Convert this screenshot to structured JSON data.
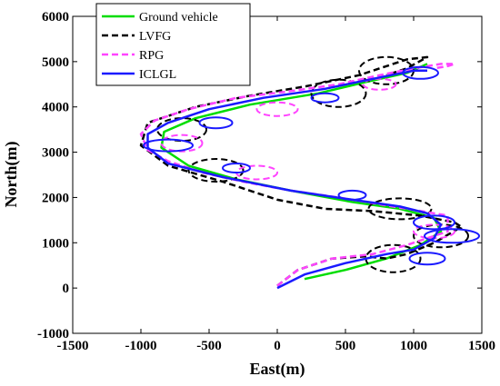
{
  "chart_data": {
    "type": "line",
    "title": "",
    "xlabel": "East(m)",
    "ylabel": "North(m)",
    "xlim": [
      -1500,
      1500
    ],
    "ylim": [
      -1000,
      6000
    ],
    "xticks": [
      -1500,
      -1000,
      -500,
      0,
      500,
      1000,
      1500
    ],
    "yticks": [
      -1000,
      0,
      1000,
      2000,
      3000,
      4000,
      5000,
      6000
    ],
    "grid": false,
    "legend_position": "top-left",
    "series": [
      {
        "name": "Ground vehicle",
        "color": "#00dd00",
        "style": "solid",
        "x": [
          200,
          500,
          800,
          1050,
          1200,
          1150,
          900,
          550,
          100,
          -300,
          -650,
          -850,
          -830,
          -600,
          -200,
          300,
          650,
          950,
          1100
        ],
        "y": [
          200,
          400,
          650,
          950,
          1250,
          1550,
          1750,
          1900,
          2150,
          2400,
          2700,
          3100,
          3450,
          3750,
          4050,
          4300,
          4550,
          4750,
          4950
        ]
      },
      {
        "name": "LVFG",
        "color": "#000000",
        "style": "dashed",
        "x": [
          0,
          150,
          400,
          650,
          800,
          950,
          1150,
          1350,
          1300,
          1050,
          700,
          350,
          0,
          -400,
          -800,
          -1000,
          -950,
          -600,
          -200,
          200,
          600,
          950,
          1100,
          950,
          800
        ],
        "y": [
          50,
          400,
          650,
          700,
          650,
          750,
          1000,
          1350,
          1450,
          1600,
          1700,
          1750,
          1950,
          2350,
          2700,
          3150,
          3650,
          4000,
          4250,
          4450,
          4700,
          5050,
          5100,
          4850,
          4700
        ],
        "ellipses": [
          {
            "cx": 850,
            "cy": 650,
            "rx": 200,
            "ry": 300
          },
          {
            "cx": 1200,
            "cy": 1150,
            "rx": 200,
            "ry": 250
          },
          {
            "cx": 900,
            "cy": 1750,
            "rx": 230,
            "ry": 230
          },
          {
            "cx": -450,
            "cy": 2600,
            "rx": 200,
            "ry": 250
          },
          {
            "cx": -700,
            "cy": 3500,
            "rx": 180,
            "ry": 250
          },
          {
            "cx": 450,
            "cy": 4300,
            "rx": 200,
            "ry": 300
          },
          {
            "cx": 800,
            "cy": 4800,
            "rx": 200,
            "ry": 300
          }
        ]
      },
      {
        "name": "RPG",
        "color": "#ff44ff",
        "style": "dashed",
        "x": [
          0,
          150,
          400,
          700,
          950,
          1100,
          1250,
          1250,
          1050,
          750,
          450,
          100,
          -250,
          -550,
          -800,
          -950,
          -1000,
          -900,
          -650,
          -300,
          100,
          450,
          750,
          1000,
          1200,
          1300,
          1250,
          1150
        ],
        "y": [
          50,
          400,
          650,
          750,
          950,
          1100,
          1250,
          1600,
          1700,
          1850,
          2000,
          2150,
          2350,
          2550,
          2800,
          3050,
          3400,
          3700,
          3950,
          4200,
          4350,
          4500,
          4700,
          4850,
          4950,
          4950,
          4900,
          4850
        ],
        "ellipses": [
          {
            "cx": 1150,
            "cy": 1250,
            "rx": 150,
            "ry": 150
          },
          {
            "cx": -150,
            "cy": 2550,
            "rx": 150,
            "ry": 150
          },
          {
            "cx": -700,
            "cy": 3200,
            "rx": 150,
            "ry": 180
          },
          {
            "cx": 0,
            "cy": 3950,
            "rx": 150,
            "ry": 150
          },
          {
            "cx": 750,
            "cy": 4500,
            "rx": 120,
            "ry": 120
          }
        ]
      },
      {
        "name": "ICLGL",
        "color": "#1a1aff",
        "style": "solid",
        "x": [
          0,
          200,
          500,
          800,
          1000,
          1150,
          1200,
          1100,
          900,
          550,
          100,
          -400,
          -800,
          -950,
          -950,
          -800,
          -500,
          -100,
          350,
          750,
          1000,
          1100
        ],
        "y": [
          0,
          300,
          550,
          750,
          850,
          1100,
          1400,
          1650,
          1800,
          1950,
          2150,
          2450,
          2750,
          3100,
          3400,
          3650,
          3950,
          4200,
          4400,
          4650,
          4800,
          4800
        ],
        "ellipses": [
          {
            "cx": 1100,
            "cy": 650,
            "rx": 130,
            "ry": 130
          },
          {
            "cx": 1280,
            "cy": 1150,
            "rx": 200,
            "ry": 150
          },
          {
            "cx": 1150,
            "cy": 1450,
            "rx": 150,
            "ry": 150
          },
          {
            "cx": 550,
            "cy": 2050,
            "rx": 100,
            "ry": 100
          },
          {
            "cx": -300,
            "cy": 2650,
            "rx": 100,
            "ry": 100
          },
          {
            "cx": -800,
            "cy": 3150,
            "rx": 180,
            "ry": 130
          },
          {
            "cx": -450,
            "cy": 3650,
            "rx": 120,
            "ry": 120
          },
          {
            "cx": 350,
            "cy": 4200,
            "rx": 100,
            "ry": 100
          },
          {
            "cx": 1050,
            "cy": 4750,
            "rx": 130,
            "ry": 130
          }
        ]
      }
    ]
  }
}
